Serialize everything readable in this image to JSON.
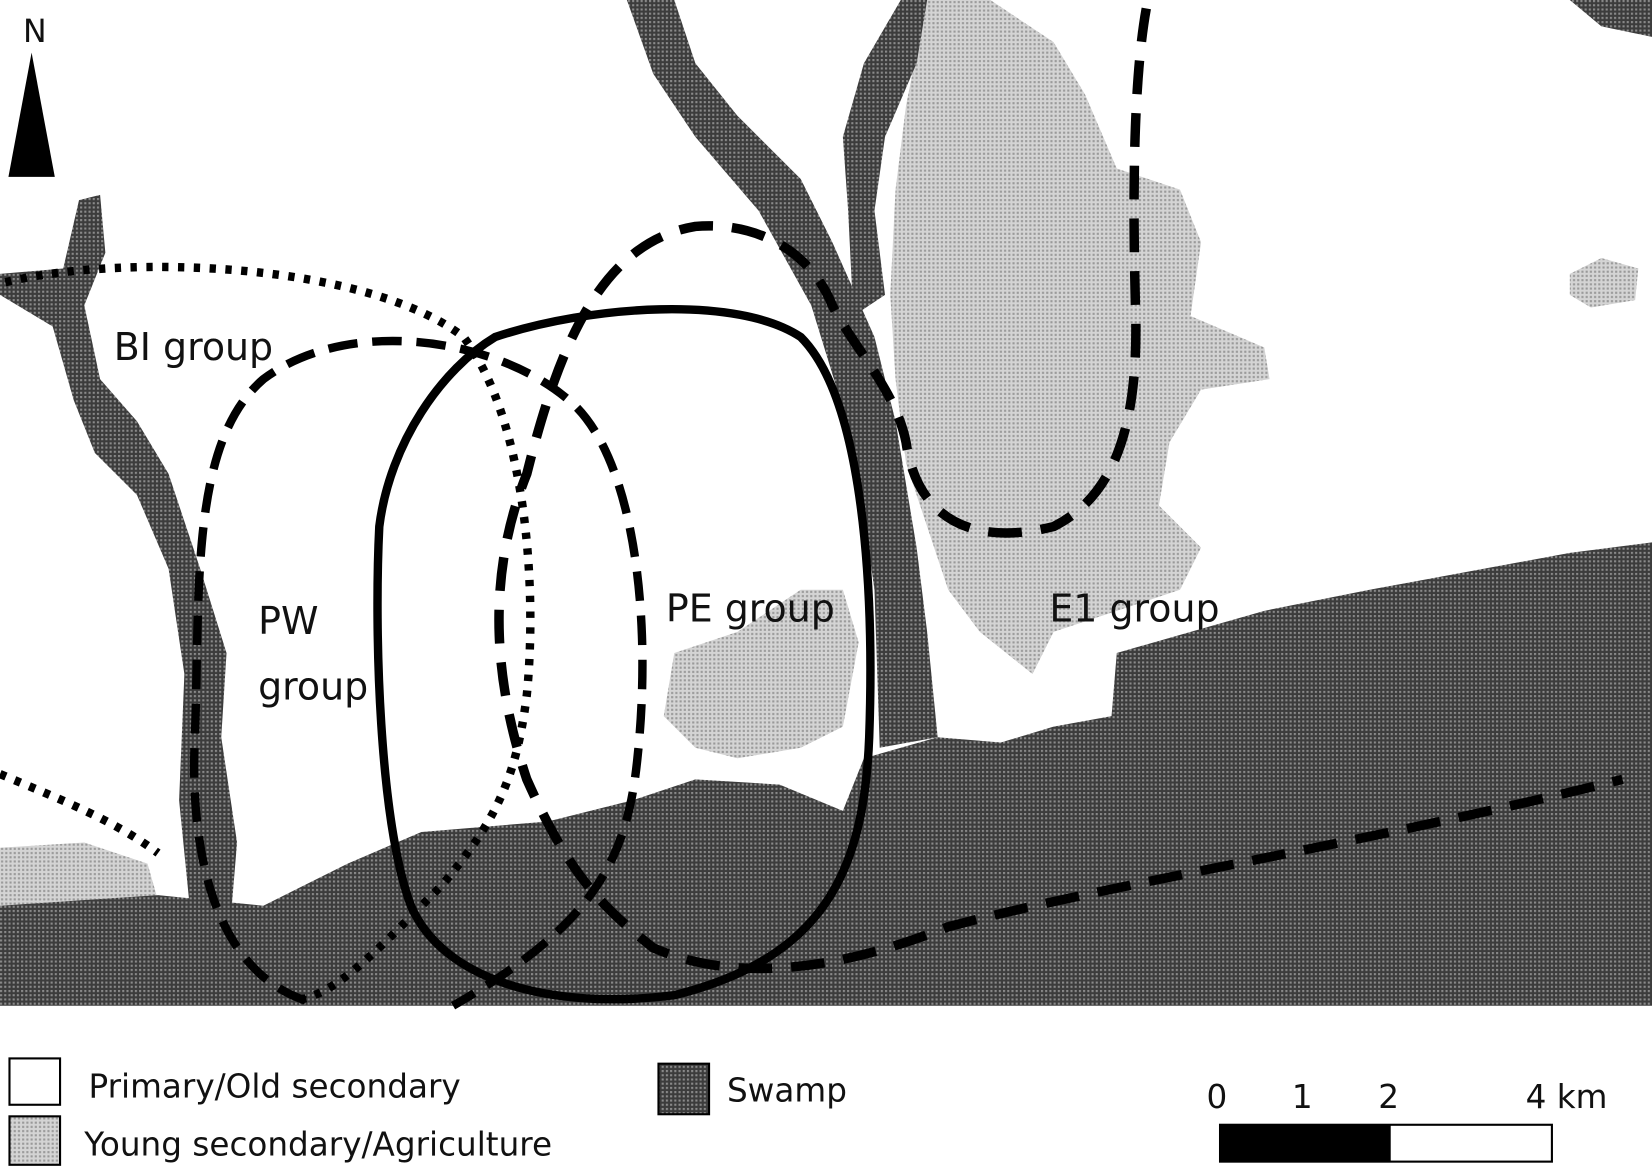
{
  "north": "N",
  "groups": {
    "bi": "BI group",
    "pw": [
      "PW",
      "group"
    ],
    "pe": "PE group",
    "e1": "E1 group"
  },
  "legend": [
    "Primary/Old secondary",
    "Young secondary/Agriculture",
    "Swamp"
  ],
  "scale_bar": {
    "labels": [
      "0",
      "1",
      "2",
      "4 km"
    ]
  }
}
